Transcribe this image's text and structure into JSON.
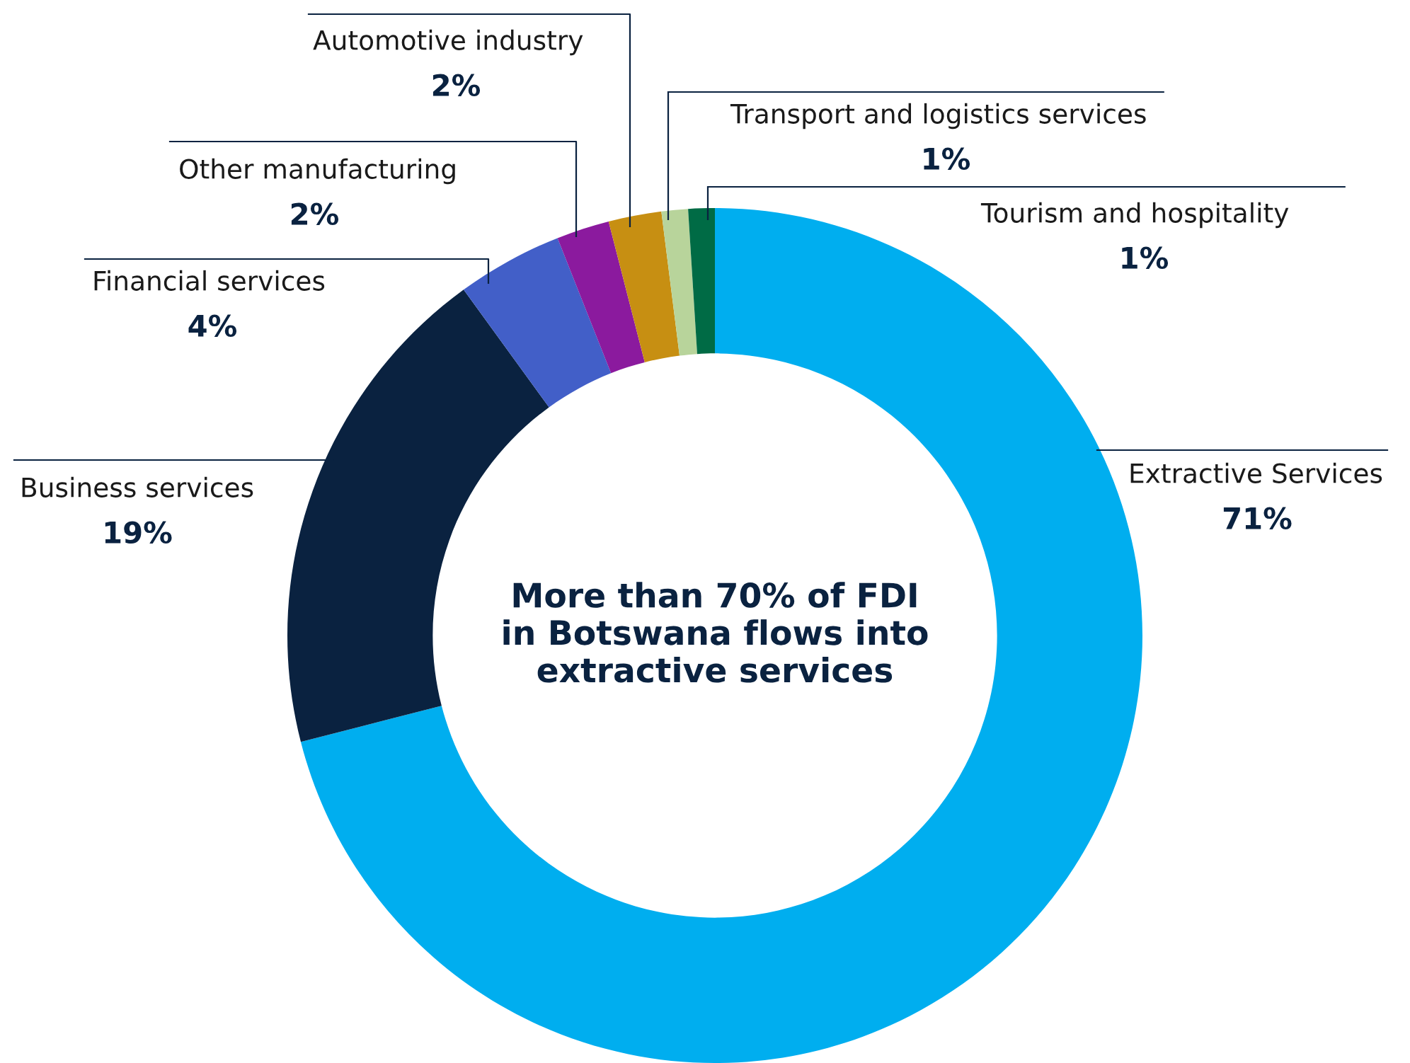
{
  "chart_data": {
    "type": "donut",
    "title": "More than 70% of FDI\nin Botswana flows into\nextractive services",
    "categories": [
      "Extractive Services",
      "Business services",
      "Financial services",
      "Other manufacturing",
      "Automotive industry",
      "Transport and logistics services",
      "Tourism and hospitality"
    ],
    "values": [
      71,
      19,
      4,
      2,
      2,
      1,
      1
    ],
    "value_labels": [
      "71%",
      "19%",
      "4%",
      "2%",
      "2%",
      "1%",
      "1%"
    ],
    "colors": [
      "#00aeef",
      "#0a2240",
      "#425fc8",
      "#8b1a9e",
      "#c78f12",
      "#b8d49b",
      "#006b45"
    ],
    "legend": false
  }
}
